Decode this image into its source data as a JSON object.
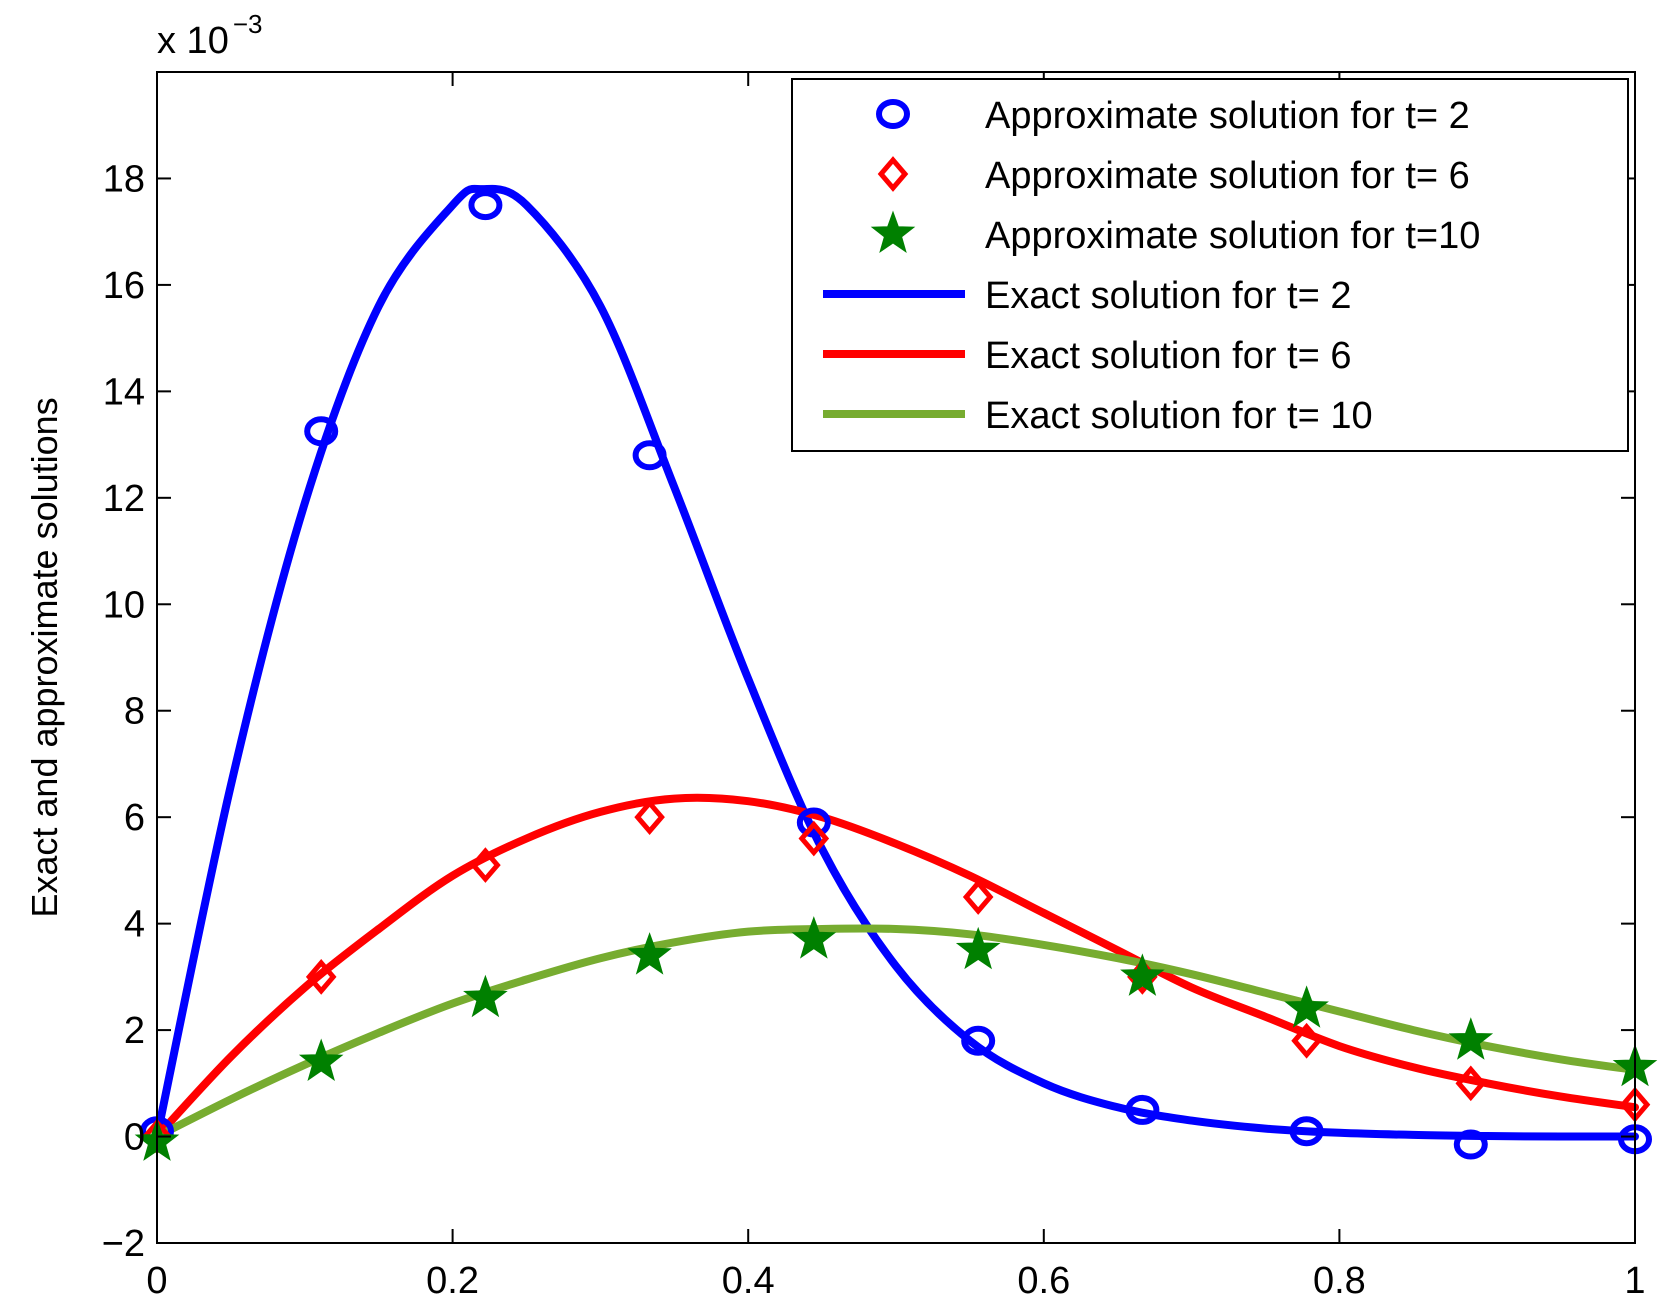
{
  "chart_data": {
    "type": "line",
    "title": "",
    "xlabel": "",
    "ylabel": "Exact and approximate solutions",
    "y_scale_text": "x 10",
    "y_scale_exponent": "−3",
    "xlim": [
      0,
      1
    ],
    "ylim": [
      -2,
      20
    ],
    "x_ticks": [
      0,
      0.2,
      0.4,
      0.6,
      0.8,
      1
    ],
    "x_tick_labels": [
      "0",
      "0.2",
      "0.4",
      "0.6",
      "0.8",
      "1"
    ],
    "y_ticks": [
      -2,
      0,
      2,
      4,
      6,
      8,
      10,
      12,
      14,
      16,
      18
    ],
    "y_tick_labels": [
      "−2",
      "0",
      "2",
      "4",
      "6",
      "8",
      "10",
      "12",
      "14",
      "16",
      "18"
    ],
    "grid": false,
    "legend_position": "top-right",
    "colors": {
      "blue": "#0000ff",
      "red": "#ff0000",
      "green": "#008000",
      "olive": "#77ac30"
    },
    "approx_series": [
      {
        "name": "Approximate solution for t= 2",
        "marker": "circle",
        "color": "#0000ff",
        "x": [
          0,
          0.1111,
          0.2222,
          0.3333,
          0.4444,
          0.5556,
          0.6667,
          0.7778,
          0.8889,
          1.0
        ],
        "y": [
          0.1,
          13.25,
          17.5,
          12.8,
          5.9,
          1.8,
          0.5,
          0.1,
          -0.15,
          -0.05
        ]
      },
      {
        "name": "Approximate solution for t= 6",
        "marker": "diamond",
        "color": "#ff0000",
        "x": [
          0,
          0.1111,
          0.2222,
          0.3333,
          0.4444,
          0.5556,
          0.6667,
          0.7778,
          0.8889,
          1.0
        ],
        "y": [
          0.0,
          3.0,
          5.1,
          6.0,
          5.6,
          4.5,
          3.0,
          1.8,
          1.0,
          0.6
        ]
      },
      {
        "name": "Approximate solution for t=10",
        "marker": "star",
        "color": "#008000",
        "x": [
          0,
          0.1111,
          0.2222,
          0.3333,
          0.4444,
          0.5556,
          0.6667,
          0.7778,
          0.8889,
          1.0
        ],
        "y": [
          -0.1,
          1.4,
          2.6,
          3.4,
          3.7,
          3.5,
          3.0,
          2.4,
          1.8,
          1.3
        ]
      }
    ],
    "exact_series": [
      {
        "name": "Exact solution for t= 2",
        "color": "#0000ff",
        "x": [
          0,
          0.05,
          0.1,
          0.15,
          0.2,
          0.22,
          0.25,
          0.3,
          0.35,
          0.4,
          0.45,
          0.5,
          0.55,
          0.6,
          0.65,
          0.7,
          0.75,
          0.8,
          0.85,
          0.9,
          0.95,
          1.0
        ],
        "y": [
          0,
          6.6,
          11.9,
          15.6,
          17.5,
          17.8,
          17.5,
          15.6,
          12.2,
          8.6,
          5.4,
          3.2,
          1.8,
          1.0,
          0.55,
          0.3,
          0.15,
          0.07,
          0.03,
          0.01,
          0.0,
          0.0
        ]
      },
      {
        "name": "Exact solution for t= 6",
        "color": "#ff0000",
        "x": [
          0,
          0.05,
          0.1,
          0.15,
          0.2,
          0.25,
          0.3,
          0.35,
          0.4,
          0.45,
          0.5,
          0.55,
          0.6,
          0.65,
          0.7,
          0.75,
          0.8,
          0.85,
          0.9,
          0.95,
          1.0
        ],
        "y": [
          0,
          1.5,
          2.8,
          3.9,
          4.9,
          5.6,
          6.1,
          6.35,
          6.3,
          6.0,
          5.5,
          4.9,
          4.2,
          3.5,
          2.8,
          2.25,
          1.7,
          1.3,
          1.0,
          0.75,
          0.55
        ]
      },
      {
        "name": "Exact solution for t= 10",
        "color": "#77ac30",
        "x": [
          0,
          0.05,
          0.1,
          0.15,
          0.2,
          0.25,
          0.3,
          0.35,
          0.4,
          0.45,
          0.5,
          0.55,
          0.6,
          0.65,
          0.7,
          0.75,
          0.8,
          0.85,
          0.9,
          0.95,
          1.0
        ],
        "y": [
          0,
          0.7,
          1.35,
          1.95,
          2.5,
          2.95,
          3.35,
          3.65,
          3.85,
          3.9,
          3.9,
          3.8,
          3.6,
          3.35,
          3.05,
          2.7,
          2.35,
          2.0,
          1.7,
          1.45,
          1.25
        ]
      }
    ]
  }
}
